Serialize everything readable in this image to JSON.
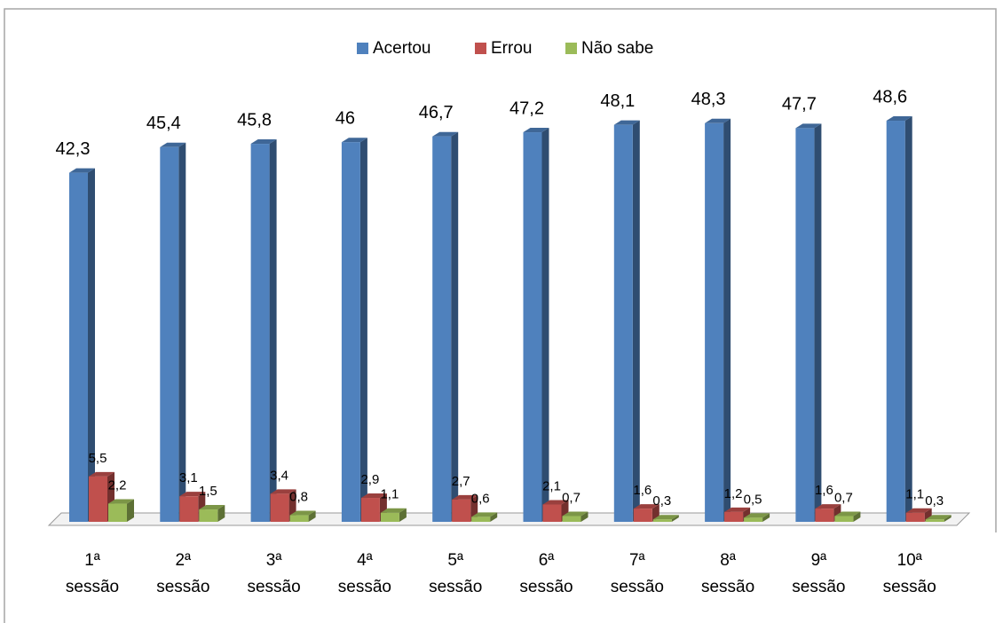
{
  "chart_data": {
    "type": "bar3d",
    "categories": [
      "1ª sessão",
      "2ª sessão",
      "3ª sessão",
      "4ª sessão",
      "5ª sessão",
      "6ª sessão",
      "7ª sessão",
      "8ª sessão",
      "9ª sessão",
      "10ª sessão"
    ],
    "series": [
      {
        "name": "Acertou",
        "color": "#4f81bd",
        "values": [
          42.3,
          45.4,
          45.8,
          46,
          46.7,
          47.2,
          48.1,
          48.3,
          47.7,
          48.6
        ],
        "value_labels": [
          "42,3",
          "45,4",
          "45,8",
          "46",
          "46,7",
          "47,2",
          "48,1",
          "48,3",
          "47,7",
          "48,6"
        ]
      },
      {
        "name": "Errou",
        "color": "#c0504d",
        "values": [
          5.5,
          3.1,
          3.4,
          2.9,
          2.7,
          2.1,
          1.6,
          1.2,
          1.6,
          1.1
        ],
        "value_labels": [
          "5,5",
          "3,1",
          "3,4",
          "2,9",
          "2,7",
          "2,1",
          "1,6",
          "1,2",
          "1,6",
          "1,1"
        ]
      },
      {
        "name": "Não sabe",
        "color": "#9bbb59",
        "values": [
          2.2,
          1.5,
          0.8,
          1.1,
          0.6,
          0.7,
          0.3,
          0.5,
          0.7,
          0.3
        ],
        "value_labels": [
          "2,2",
          "1,5",
          "0,8",
          "1,1",
          "0,6",
          "0,7",
          "0,3",
          "0,5",
          "0,7",
          "0,3"
        ]
      }
    ],
    "legend": "top"
  }
}
